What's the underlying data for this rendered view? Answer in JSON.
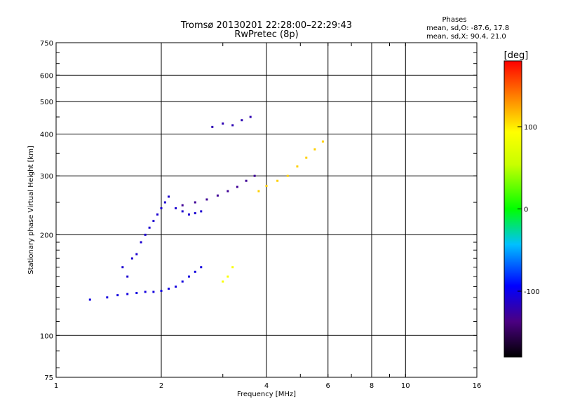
{
  "chart_data": {
    "type": "scatter",
    "title": "Tromsø 20130201 22:28:00–22:29:43",
    "subtitle": "RwPretec (8p)",
    "xlabel": "Frequency [MHz]",
    "ylabel": "Stationary phase Virtual Height [km]",
    "x_scale": "log",
    "y_scale": "log",
    "xlim": [
      1,
      16
    ],
    "ylim": [
      75,
      750
    ],
    "x_ticks": [
      1,
      2,
      4,
      6,
      8,
      10,
      16
    ],
    "x_tick_labels": [
      "1",
      "2",
      "4",
      "6",
      "8",
      "10",
      "16"
    ],
    "y_ticks": [
      75,
      100,
      200,
      300,
      400,
      500,
      600,
      750
    ],
    "y_tick_labels": [
      "75",
      "100",
      "200",
      "300",
      "400",
      "500",
      "600",
      "750"
    ],
    "grid": true,
    "stats": {
      "title": "Phases",
      "line_o": "mean, sd,O: -87.6, 17.8",
      "line_x": "mean, sd,X:  90.4, 21.0"
    },
    "colorbar": {
      "label": "[deg]",
      "range": [
        -180,
        180
      ],
      "ticks": [
        100,
        0,
        -100
      ],
      "tick_labels": [
        "100",
        "0",
        "-100"
      ]
    },
    "series": [
      {
        "x": [
          1.55,
          1.6,
          1.65,
          1.7,
          1.75,
          1.8,
          1.85,
          1.9,
          1.95,
          2.0,
          2.05,
          2.1,
          2.2,
          2.3,
          2.4,
          2.5,
          2.6
        ],
        "y": [
          160,
          150,
          170,
          175,
          190,
          200,
          210,
          220,
          230,
          240,
          250,
          260,
          240,
          235,
          230,
          232,
          235
        ],
        "value": -110
      },
      {
        "x": [
          1.25,
          1.4,
          1.5,
          1.6,
          1.7,
          1.8,
          1.9,
          2.0,
          2.1,
          2.2,
          2.3,
          2.4,
          2.5,
          2.6
        ],
        "y": [
          128,
          130,
          132,
          133,
          134,
          135,
          135,
          136,
          138,
          140,
          145,
          150,
          155,
          160
        ],
        "value": -105
      },
      {
        "x": [
          2.3,
          2.5,
          2.7,
          2.9,
          3.1,
          3.3,
          3.5,
          3.7
        ],
        "y": [
          245,
          250,
          255,
          262,
          270,
          278,
          290,
          300
        ],
        "value": -130
      },
      {
        "x": [
          3.8,
          4.0,
          4.3,
          4.6,
          4.9,
          5.2,
          5.5,
          5.8
        ],
        "y": [
          270,
          280,
          290,
          300,
          320,
          340,
          360,
          380
        ],
        "value": 110
      },
      {
        "x": [
          2.8,
          3.0,
          3.2,
          3.4,
          3.6
        ],
        "y": [
          420,
          430,
          425,
          440,
          450
        ],
        "value": -120
      },
      {
        "x": [
          3.0,
          3.1,
          3.2
        ],
        "y": [
          145,
          150,
          160
        ],
        "value": 90
      }
    ]
  }
}
